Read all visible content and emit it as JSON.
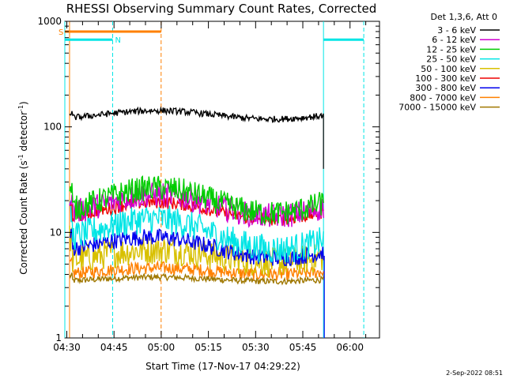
{
  "chart_data": {
    "type": "line",
    "title": "RHESSI Observing Summary Count Rates, Corrected",
    "xlabel": "Start Time (17-Nov-17 04:29:22)",
    "ylabel_base": "Corrected Count Rate (s",
    "ylabel_sup": "-1",
    "ylabel_tail": " detector",
    "ylabel_sup2": "-1",
    "ylabel_end": ")",
    "x_units": "minutes after 04:29:22",
    "xlim": [
      0,
      100
    ],
    "ylim": [
      1,
      1000
    ],
    "yscale": "log",
    "x_ticks": [
      {
        "label": "04:30",
        "value": 0.63
      },
      {
        "label": "04:45",
        "value": 15.63
      },
      {
        "label": "05:00",
        "value": 30.63
      },
      {
        "label": "05:15",
        "value": 45.63
      },
      {
        "label": "05:30",
        "value": 60.63
      },
      {
        "label": "05:45",
        "value": 75.63
      },
      {
        "label": "06:00",
        "value": 90.63
      }
    ],
    "y_ticks": [
      {
        "label": "1",
        "value": 1
      },
      {
        "label": "10",
        "value": 10
      },
      {
        "label": "100",
        "value": 100
      },
      {
        "label": "1000",
        "value": 1000
      }
    ],
    "legend_header": "Det 1,3,6, Att 0",
    "legend_position": "right",
    "data_range": [
      1.5,
      82.2
    ],
    "series": [
      {
        "name": "3 - 6 keV",
        "color": "#000000",
        "level": 130,
        "wiggle": 0.04,
        "noise": 0.03,
        "trend": 0
      },
      {
        "name": "6 - 12 keV",
        "color": "#d000d0",
        "level": 18,
        "wiggle": 0.1,
        "noise": 0.12,
        "trend": 0
      },
      {
        "name": "12 - 25 keV",
        "color": "#00cc00",
        "level": 20,
        "wiggle": 0.12,
        "noise": 0.12,
        "trend": 0
      },
      {
        "name": "25 - 50 keV",
        "color": "#00e5e5",
        "level": 11,
        "wiggle": 0.12,
        "noise": 0.14,
        "trend": -0.1
      },
      {
        "name": "50 - 100 keV",
        "color": "#d8c000",
        "level": 6,
        "wiggle": 0.06,
        "noise": 0.14,
        "trend": 0
      },
      {
        "name": "100 - 300 keV",
        "color": "#ee0000",
        "level": 16,
        "wiggle": 0.08,
        "noise": 0.06,
        "trend": 0
      },
      {
        "name": "300 - 800 keV",
        "color": "#0000ee",
        "level": 8,
        "wiggle": 0.08,
        "noise": 0.08,
        "trend": -0.08
      },
      {
        "name": "800 - 7000 keV",
        "color": "#ff8000",
        "level": 4.3,
        "wiggle": 0.03,
        "noise": 0.06,
        "trend": 0
      },
      {
        "name": "7000 - 15000 keV",
        "color": "#a07800",
        "level": 3.6,
        "wiggle": 0.02,
        "noise": 0.03,
        "trend": 0
      }
    ],
    "markers": {
      "saa_label": "S",
      "saa_color": "#ff8000",
      "saa_level": 800,
      "saa_segments": [
        [
          -1,
          30.6
        ]
      ],
      "saa_lines": [
        1.5,
        30.6
      ],
      "night_label": "N",
      "night_color": "#00e5e5",
      "night_level": 670,
      "night_segments": [
        [
          -1,
          15.2
        ],
        [
          82.2,
          95.0
        ]
      ],
      "night_lines": [
        0.0,
        15.2,
        82.2,
        95.0
      ]
    }
  },
  "footer": {
    "timestamp": "2-Sep-2022 08:51"
  }
}
